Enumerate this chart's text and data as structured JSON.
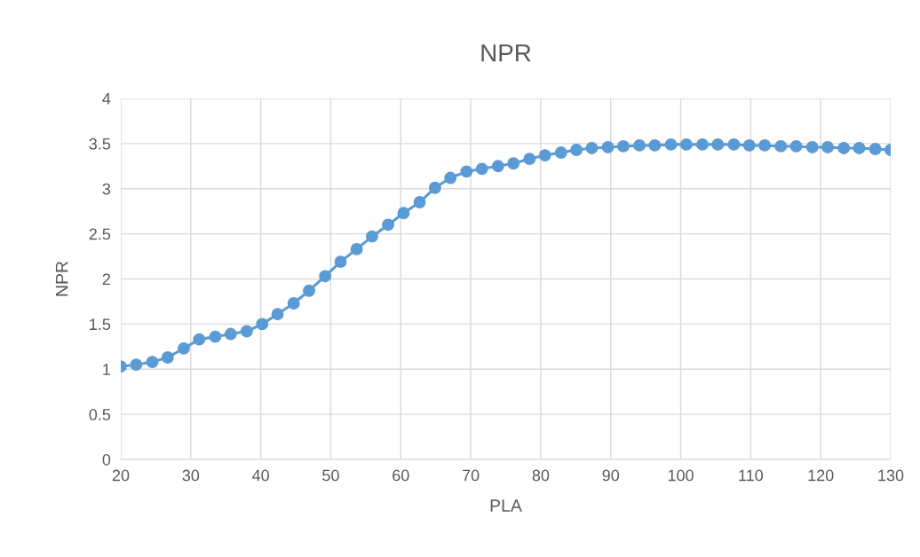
{
  "chart_data": {
    "type": "line",
    "title": "NPR",
    "xlabel": "PLA",
    "ylabel": "NPR",
    "x": [
      20,
      22.2,
      24.5,
      26.7,
      29.0,
      31.2,
      33.5,
      35.7,
      38.0,
      40.2,
      42.4,
      44.7,
      46.9,
      49.2,
      51.4,
      53.7,
      55.9,
      58.2,
      60.4,
      62.7,
      64.9,
      67.1,
      69.4,
      71.6,
      73.9,
      76.1,
      78.4,
      80.6,
      82.9,
      85.1,
      87.3,
      89.6,
      91.8,
      94.1,
      96.3,
      98.6,
      100.8,
      103.1,
      105.3,
      107.6,
      109.8,
      112.0,
      114.3,
      116.5,
      118.8,
      121.0,
      123.3,
      125.5,
      127.8,
      130
    ],
    "series": [
      {
        "color": "#5b9bd5",
        "values": [
          1.03,
          1.05,
          1.08,
          1.13,
          1.23,
          1.33,
          1.36,
          1.39,
          1.42,
          1.5,
          1.61,
          1.73,
          1.87,
          2.03,
          2.19,
          2.33,
          2.47,
          2.6,
          2.73,
          2.85,
          3.01,
          3.12,
          3.19,
          3.22,
          3.25,
          3.28,
          3.33,
          3.37,
          3.4,
          3.43,
          3.45,
          3.46,
          3.47,
          3.48,
          3.48,
          3.49,
          3.49,
          3.49,
          3.49,
          3.49,
          3.48,
          3.48,
          3.47,
          3.47,
          3.46,
          3.46,
          3.45,
          3.45,
          3.44,
          3.43
        ]
      }
    ],
    "xlim": [
      20,
      130
    ],
    "xticks": [
      20,
      30,
      40,
      50,
      60,
      70,
      80,
      90,
      100,
      110,
      120,
      130
    ],
    "ylim": [
      0,
      4
    ],
    "yticks": [
      0,
      0.5,
      1,
      1.5,
      2,
      2.5,
      3,
      3.5,
      4
    ],
    "grid": true,
    "marker": "circle",
    "line_style": "solid",
    "legend": false
  }
}
